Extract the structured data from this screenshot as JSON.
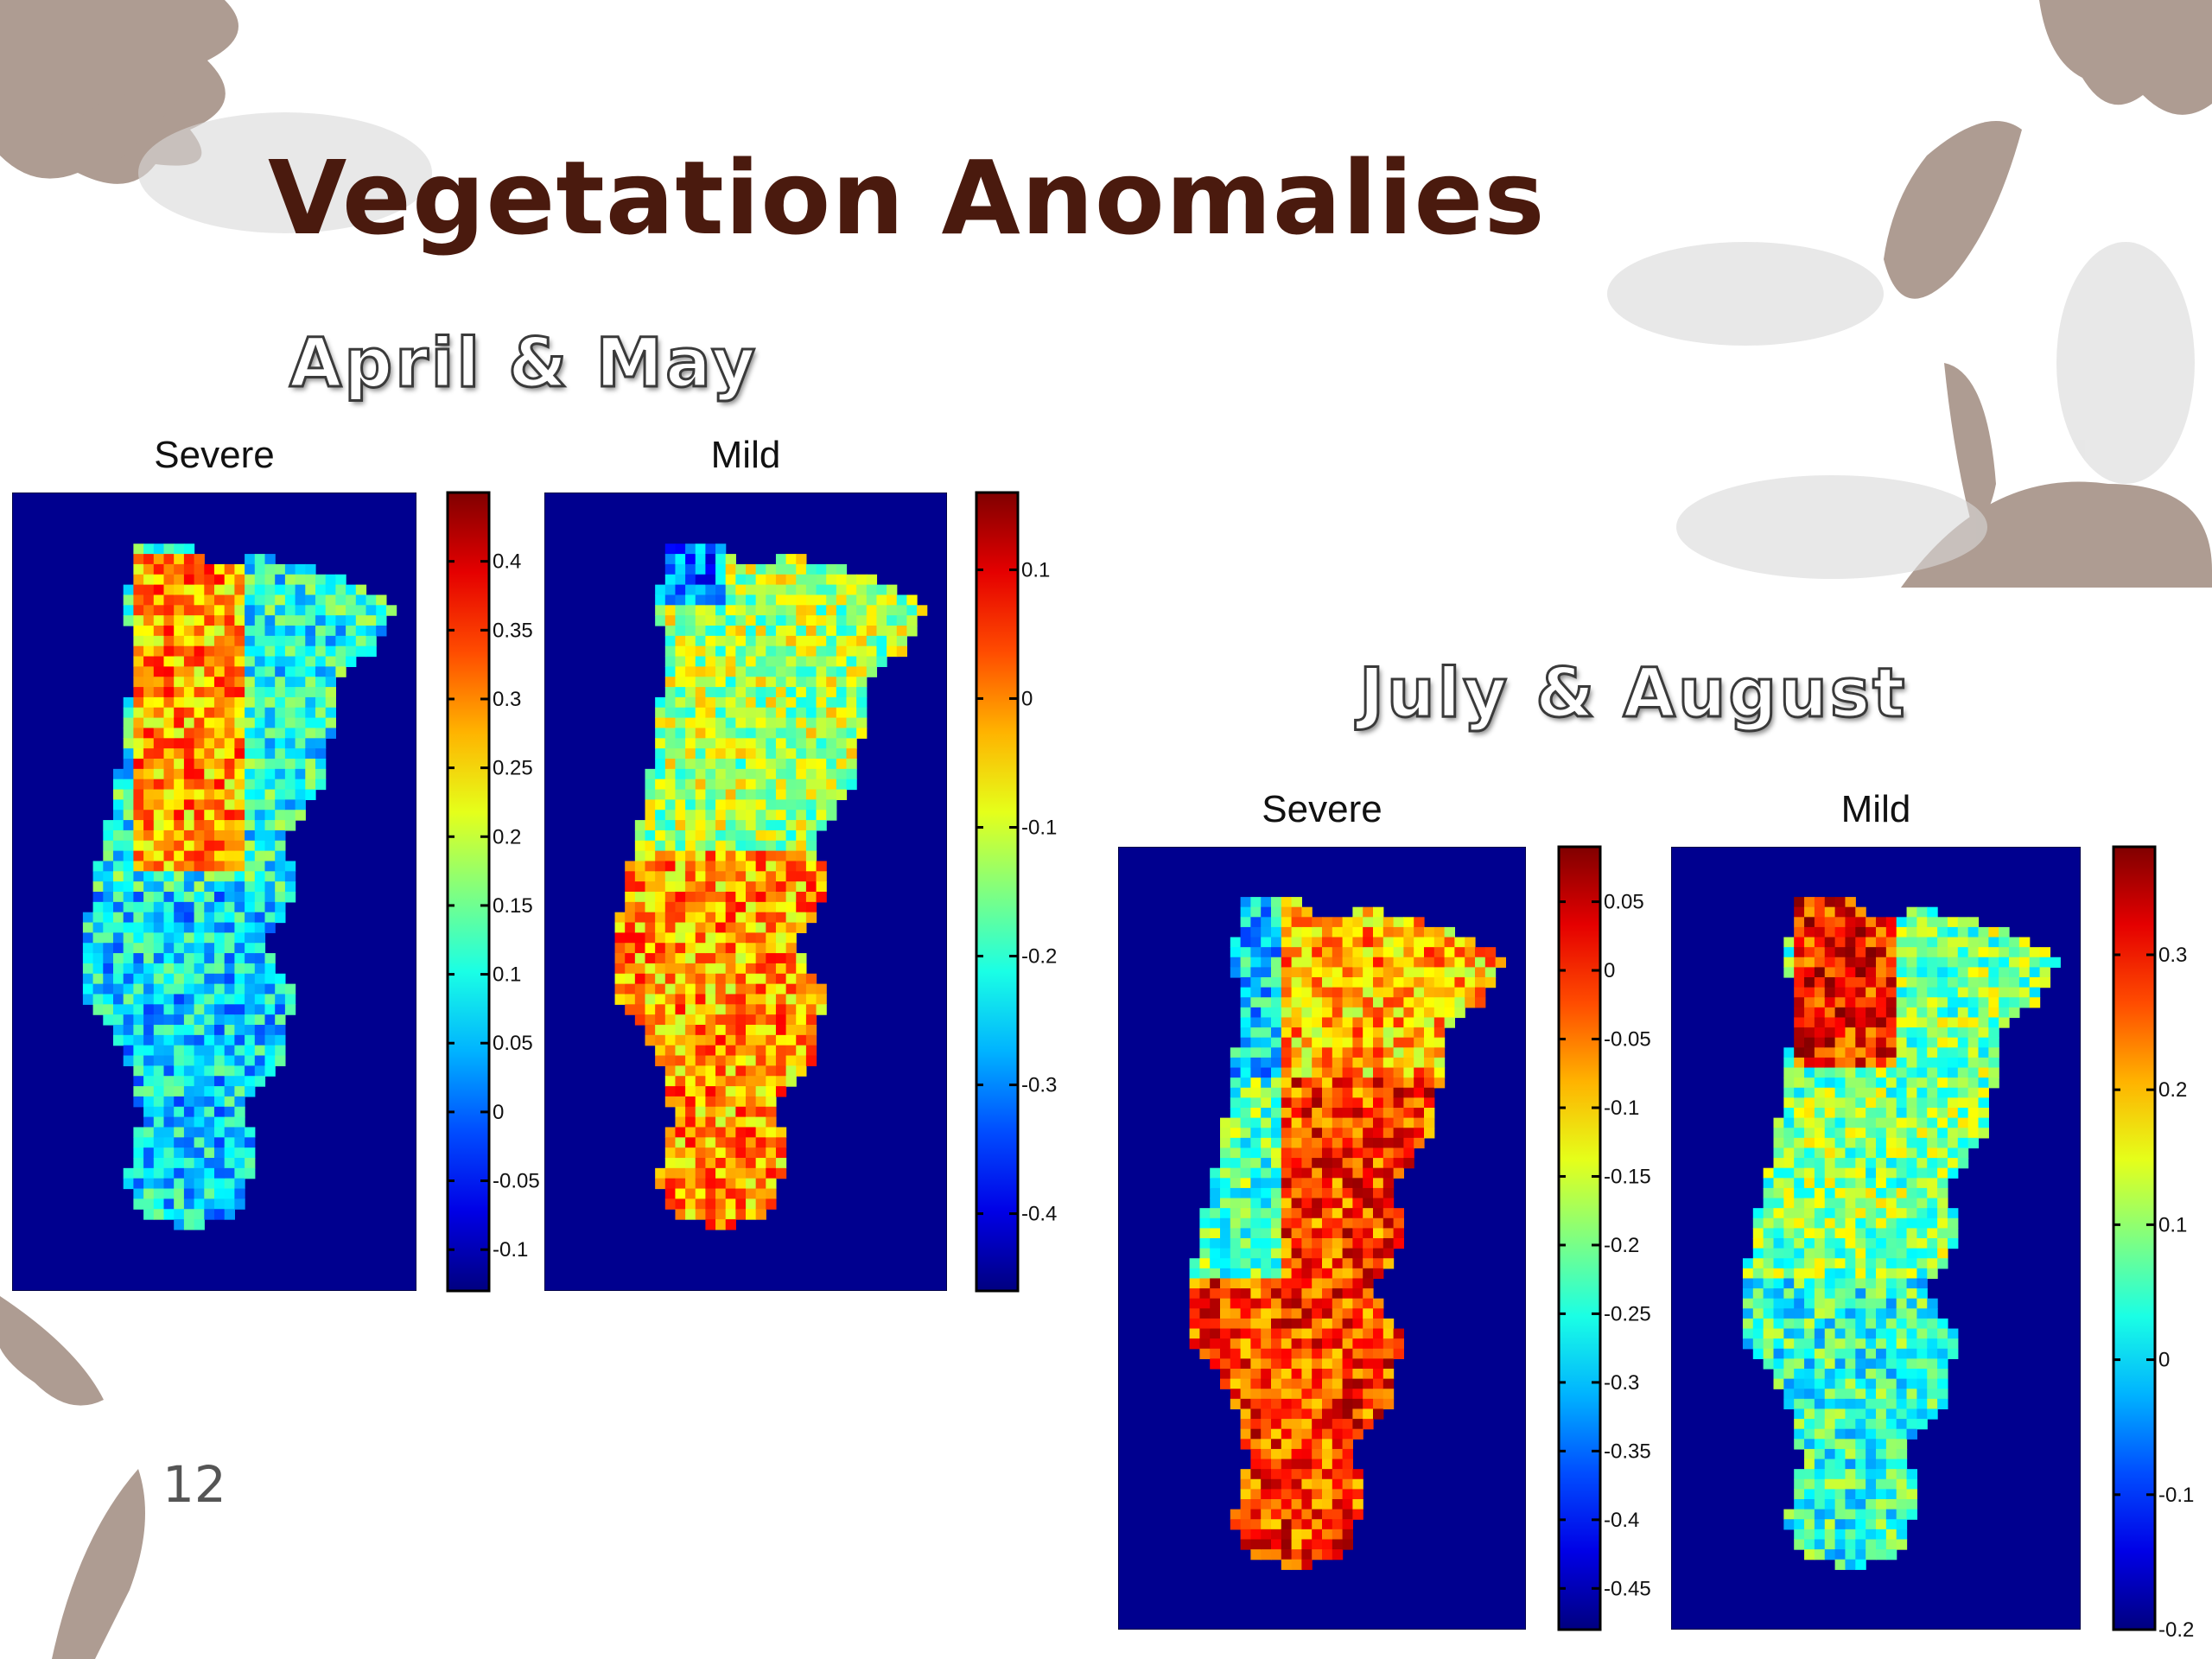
{
  "slide": {
    "title": "Vegetation Anomalies",
    "page_number": "12",
    "sections": [
      {
        "label": "April & May"
      },
      {
        "label": "July & August"
      }
    ]
  },
  "colors": {
    "title": "#4a1a0e",
    "map_background": "#00008f",
    "leaf_decoration": "#a08b7f"
  },
  "chart_data": [
    {
      "type": "heatmap",
      "section": "April & May",
      "title": "Severe",
      "colormap": "jet",
      "colorbar": {
        "range": [
          -0.13,
          0.45
        ],
        "ticks": [
          -0.1,
          -0.05,
          0,
          0.05,
          0.1,
          0.15,
          0.2,
          0.25,
          0.3,
          0.35,
          0.4
        ],
        "tick_labels": [
          "-0.1",
          "-0.05",
          "0",
          "0.05",
          "0.1",
          "0.15",
          "0.2",
          "0.25",
          "0.3",
          "0.35",
          "0.4"
        ]
      },
      "typical_value": 0.08,
      "notes": "mostly cyan; red/orange cluster in north-central region"
    },
    {
      "type": "heatmap",
      "section": "April & May",
      "title": "Mild",
      "colormap": "jet",
      "colorbar": {
        "range": [
          -0.46,
          0.16
        ],
        "ticks": [
          -0.4,
          -0.3,
          -0.2,
          -0.1,
          0,
          0.1
        ],
        "tick_labels": [
          "-0.4",
          "-0.3",
          "-0.2",
          "-0.1",
          "0",
          "0.1"
        ]
      },
      "typical_value": 0.0,
      "notes": "mostly yellow/orange; cyan/blue patches in north"
    },
    {
      "type": "heatmap",
      "section": "July & August",
      "title": "Severe",
      "colormap": "jet",
      "colorbar": {
        "range": [
          -0.48,
          0.09
        ],
        "ticks": [
          -0.45,
          -0.4,
          -0.35,
          -0.3,
          -0.25,
          -0.2,
          -0.15,
          -0.1,
          -0.05,
          0,
          0.05
        ],
        "tick_labels": [
          "-0.45",
          "-0.4",
          "-0.35",
          "-0.3",
          "-0.25",
          "-0.2",
          "-0.15",
          "-0.1",
          "-0.05",
          "0",
          "0.05"
        ]
      },
      "typical_value": -0.02,
      "notes": "mostly red/orange; cyan/yellow along north-west coast"
    },
    {
      "type": "heatmap",
      "section": "July & August",
      "title": "Mild",
      "colormap": "jet",
      "colorbar": {
        "range": [
          -0.2,
          0.38
        ],
        "ticks": [
          -0.2,
          -0.1,
          0,
          0.1,
          0.2,
          0.3
        ],
        "tick_labels": [
          "-0.2",
          "-0.1",
          "0",
          "0.1",
          "0.2",
          "0.3"
        ]
      },
      "typical_value": 0.05,
      "notes": "mostly cyan/light blue; red cluster in north"
    }
  ]
}
